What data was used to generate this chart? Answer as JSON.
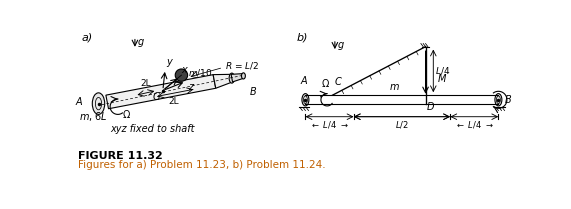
{
  "fig_width": 5.71,
  "fig_height": 2.09,
  "dpi": 100,
  "bg_color": "#ffffff",
  "caption_title": "FIGURE 11.32",
  "caption_body": "Figures for a) Problem 11.23, b) Problem 11.24.",
  "caption_title_color": "#000000",
  "caption_body_color": "#c06000",
  "label_a": "a)",
  "label_b": "b)"
}
